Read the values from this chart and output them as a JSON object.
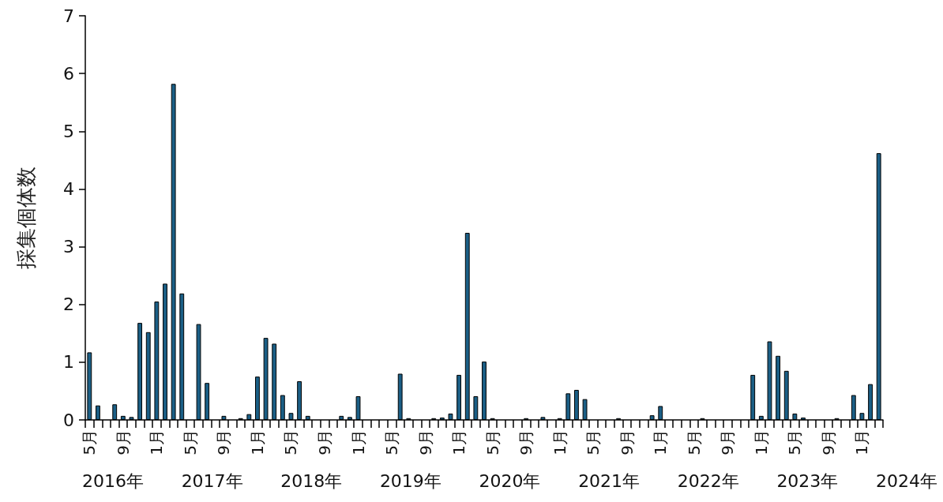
{
  "chart_data": {
    "type": "bar",
    "ylabel": "採集個体数",
    "categories": [
      "5月",
      null,
      null,
      null,
      "9月",
      null,
      null,
      null,
      "1月",
      null,
      null,
      null,
      "5月",
      null,
      null,
      null,
      "9月",
      null,
      null,
      null,
      "1月",
      null,
      null,
      null,
      "5月",
      null,
      null,
      null,
      "9月",
      null,
      null,
      null,
      "1月",
      null,
      null,
      null,
      "5月",
      null,
      null,
      null,
      "9月",
      null,
      null,
      null,
      "1月",
      null,
      null,
      null,
      "5月",
      null,
      null,
      null,
      "9月",
      null,
      null,
      null,
      "1月",
      null,
      null,
      null,
      "5月",
      null,
      null,
      null,
      "9月",
      null,
      null,
      null,
      "1月",
      null,
      null,
      null,
      "5月",
      null,
      null,
      null,
      "9月",
      null,
      null,
      null,
      "1月",
      null,
      null,
      null,
      "5月",
      null,
      null,
      null,
      "9月",
      null,
      null,
      null,
      "1月",
      null,
      null
    ],
    "values": [
      1.17,
      0.25,
      0,
      0.27,
      0.07,
      0.05,
      1.68,
      1.52,
      2.05,
      2.36,
      5.82,
      2.19,
      0,
      1.66,
      0.64,
      0,
      0.07,
      0,
      0.03,
      0.1,
      0.75,
      1.42,
      1.32,
      0.43,
      0.12,
      0.67,
      0.07,
      0,
      0,
      0,
      0.07,
      0.05,
      0.41,
      0,
      0,
      0,
      0,
      0.8,
      0.03,
      0,
      0,
      0.03,
      0.04,
      0.11,
      0.78,
      3.24,
      0.41,
      1.01,
      0.03,
      0,
      0,
      0,
      0.03,
      0,
      0.05,
      0,
      0.03,
      0.46,
      0.52,
      0.36,
      0,
      0,
      0,
      0.03,
      0,
      0,
      0,
      0.08,
      0.24,
      0,
      0,
      0,
      0,
      0.03,
      0,
      0,
      0,
      0,
      0,
      0.78,
      0.07,
      1.36,
      1.11,
      0.85,
      0.11,
      0.04,
      0,
      0,
      0,
      0.03,
      0,
      0.43,
      0.12,
      0.62,
      4.62
    ],
    "color": "#1b5f86",
    "ylim": [
      0,
      7
    ],
    "yticks": [
      0,
      1,
      2,
      3,
      4,
      5,
      6,
      7
    ],
    "grid": false,
    "annotations": [
      "2016年",
      "2017年",
      "2018年",
      "2019年",
      "2020年",
      "2021年",
      "2022年",
      "2023年",
      "2024年"
    ]
  }
}
